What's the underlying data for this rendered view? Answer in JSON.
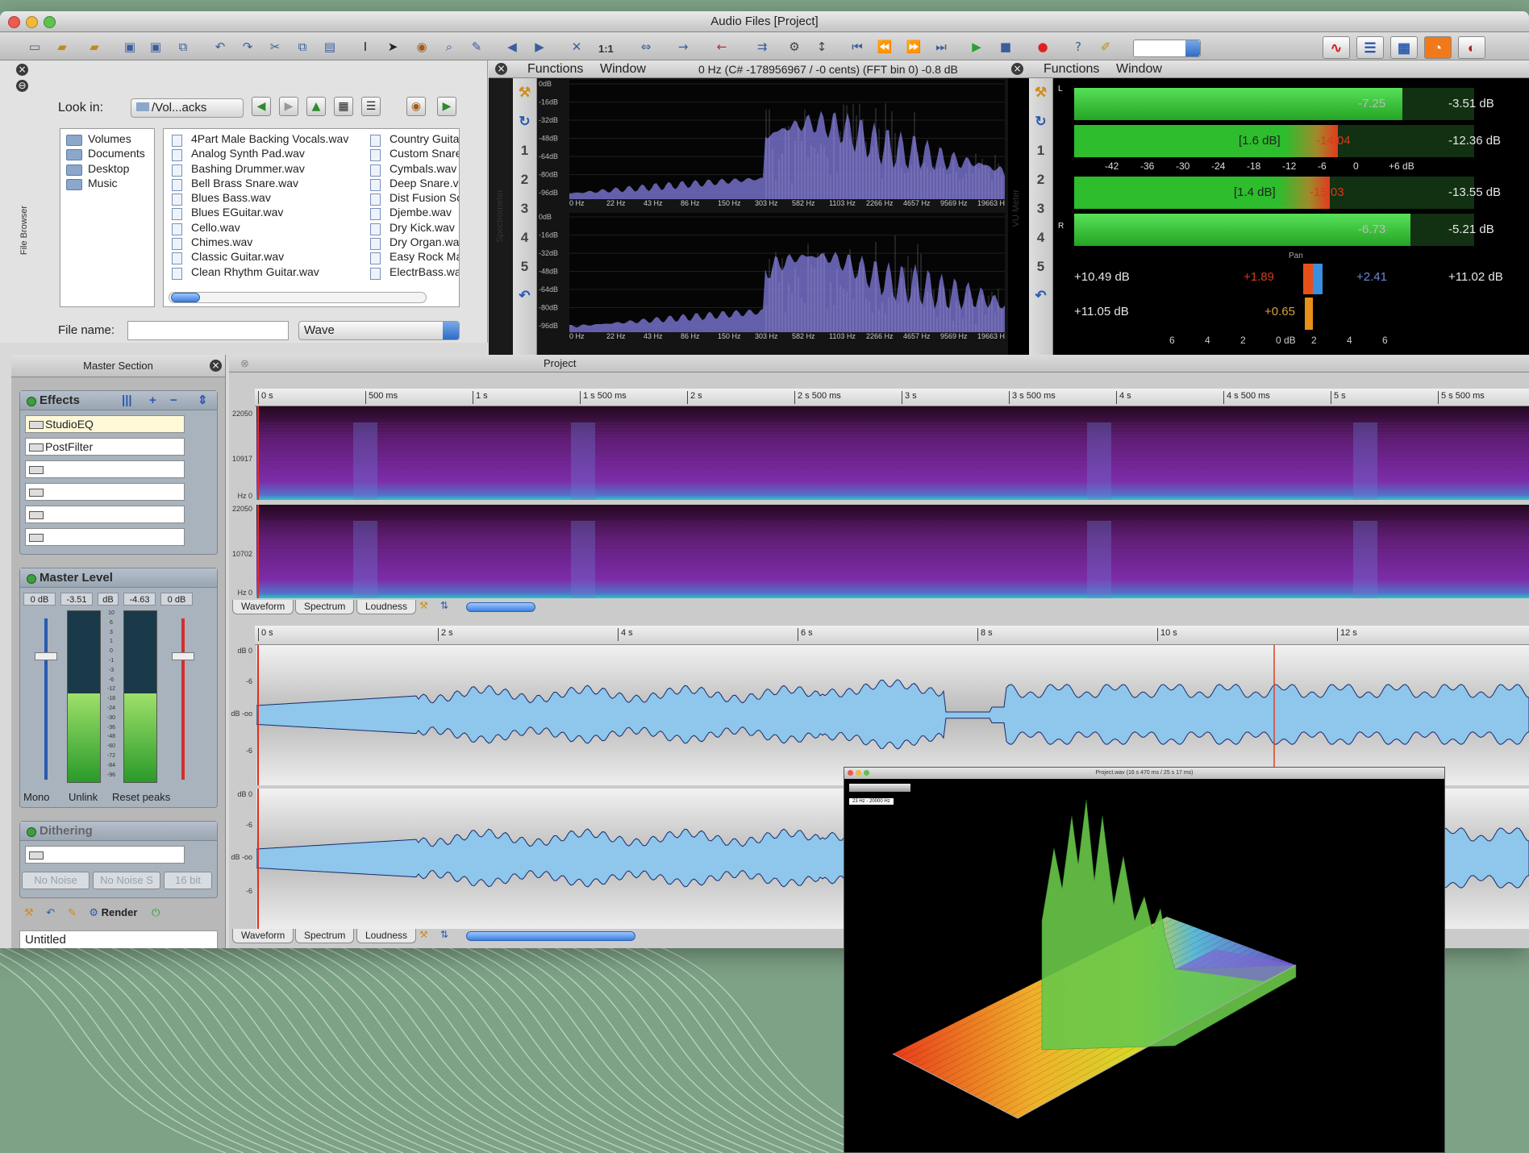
{
  "window": {
    "title": "Audio Files [Project]"
  },
  "toolbar": {
    "zoom_label": "1:1",
    "workspace_buttons": [
      "waveform-workspace-icon",
      "montage-workspace-icon",
      "batch-workspace-icon",
      "podcast-workspace-icon",
      "cd-workspace-icon"
    ]
  },
  "file_browser": {
    "tab_label": "File Browser",
    "look_in_label": "Look in:",
    "look_in_value": "/Vol...acks",
    "volumes": [
      "Volumes",
      "Documents",
      "Desktop",
      "Music"
    ],
    "files_col1": [
      "4Part Male Backing Vocals.wav",
      "Analog Synth Pad.wav",
      "Bashing Drummer.wav",
      "Bell Brass Snare.wav",
      "Blues Bass.wav",
      "Blues EGuitar.wav",
      "Cello.wav",
      "Chimes.wav",
      "Classic Guitar.wav",
      "Clean Rhythm Guitar.wav"
    ],
    "files_col2": [
      "Country Guita",
      "Custom Snare",
      "Cymbals.wav",
      "Deep Snare.v",
      "Dist Fusion Sc",
      "Djembe.wav",
      "Dry Kick.wav",
      "Dry Organ.wa",
      "Easy Rock Ma",
      "ElectrBass.wa"
    ],
    "file_name_label": "File name:",
    "file_name_value": "",
    "format_value": "Wave"
  },
  "spectrometer": {
    "tab_label": "Spectrometer",
    "menu": [
      "Functions",
      "Window"
    ],
    "readout": "0 Hz (C# -178956967 / -0 cents) (FFT bin 0) -0.8 dB",
    "db_labels": [
      "0dB",
      "-16dB",
      "-32dB",
      "-48dB",
      "-64dB",
      "-80dB",
      "-96dB"
    ],
    "db_labels_lower": [
      "0dB",
      "-16dB",
      "-32dB",
      "-48dB",
      "-64dB",
      "-80dB",
      "-96dB"
    ],
    "hz_labels": [
      "0 Hz",
      "22 Hz",
      "43 Hz",
      "86 Hz",
      "150 Hz",
      "303 Hz",
      "582 Hz",
      "1103 Hz",
      "2266 Hz",
      "4657 Hz",
      "9569 Hz",
      "19663 H"
    ],
    "side_numbers": [
      "1",
      "2",
      "3",
      "4",
      "5"
    ]
  },
  "vu_meter": {
    "tab_label": "VU Meter",
    "menu": [
      "Functions",
      "Window"
    ],
    "ch_left": "L",
    "ch_right": "R",
    "scale": [
      "-42",
      "-36",
      "-30",
      "-24",
      "-18",
      "-12",
      "-6",
      "0",
      "+6 dB"
    ],
    "l_peak": "-7.25",
    "l_peak_max": "-3.51 dB",
    "l_rms": "[1.6 dB]",
    "l_rms_val": "-14.04",
    "l_rms_max": "-12.36 dB",
    "r_rms": "[1.4 dB]",
    "r_rms_val": "-15.03",
    "r_rms_max": "-13.55 dB",
    "r_peak": "-6.73",
    "r_peak_max": "-5.21 dB",
    "pan_label": "Pan",
    "pan_l_db": "+10.49 dB",
    "pan_l_val": "+1.89",
    "pan_r_val": "+2.41",
    "pan_r_db": "+11.02 dB",
    "pan2_db": "+11.05 dB",
    "pan2_val": "+0.65",
    "pan_scale": [
      "6",
      "4",
      "2",
      "0 dB",
      "2",
      "4",
      "6"
    ],
    "levels": {
      "l_peak": 0.82,
      "l_rms": 0.66,
      "r_rms": 0.64,
      "r_peak": 0.84
    }
  },
  "master_section": {
    "title": "Master Section",
    "effects_label": "Effects",
    "effect_slots": [
      "StudioEQ",
      "PostFilter",
      "",
      "",
      "",
      ""
    ],
    "master_level_label": "Master Level",
    "level_readouts": [
      "0 dB",
      "-3.51",
      "dB",
      "-4.63",
      "0 dB"
    ],
    "meter_scale": [
      "10",
      "6",
      "3",
      "1",
      "0",
      "-1",
      "-3",
      "-6",
      "-12",
      "-18",
      "-24",
      "-30",
      "-36",
      "-48",
      "-60",
      "-72",
      "-84",
      "-96"
    ],
    "buttons": [
      "Mono",
      "Unlink",
      "Reset peaks"
    ],
    "dithering_label": "Dithering",
    "dither_options": [
      "No Noise",
      "No Noise S",
      "16 bit"
    ],
    "render_label": "Render",
    "preset_value": "Untitled",
    "meter_fill": {
      "left": 0.52,
      "right": 0.52
    }
  },
  "project": {
    "title": "Project",
    "spectrum_ruler": [
      "0 s",
      "500 ms",
      "1 s",
      "1 s 500 ms",
      "2 s",
      "2 s 500 ms",
      "3 s",
      "3 s 500 ms",
      "4 s",
      "4 s 500 ms",
      "5 s",
      "5 s 500 ms"
    ],
    "spectrum_axis": [
      "22050",
      "10917",
      "Hz 0",
      "22050",
      "10702",
      "Hz 0"
    ],
    "wave_ruler": [
      "0 s",
      "2 s",
      "4 s",
      "6 s",
      "8 s",
      "10 s",
      "12 s"
    ],
    "wave_axis": [
      "dB 0",
      "-6",
      "dB -oo",
      "-6",
      "dB 0",
      "-6",
      "dB -oo",
      "-6"
    ],
    "view_tabs": [
      "Waveform",
      "Spectrum",
      "Loudness"
    ]
  },
  "analysis_window": {
    "title": "Project.wav (16 s 470 ms / 25 s 17 ms)",
    "range_label": "23 Hz - 20000 Hz"
  },
  "colors": {
    "meter_green": "#37c837",
    "meter_red": "#e23a1e",
    "spectrum_fill": "#7570c8",
    "waveform_fill": "#8ec6ec",
    "accent_blue": "#3c7fe0"
  }
}
